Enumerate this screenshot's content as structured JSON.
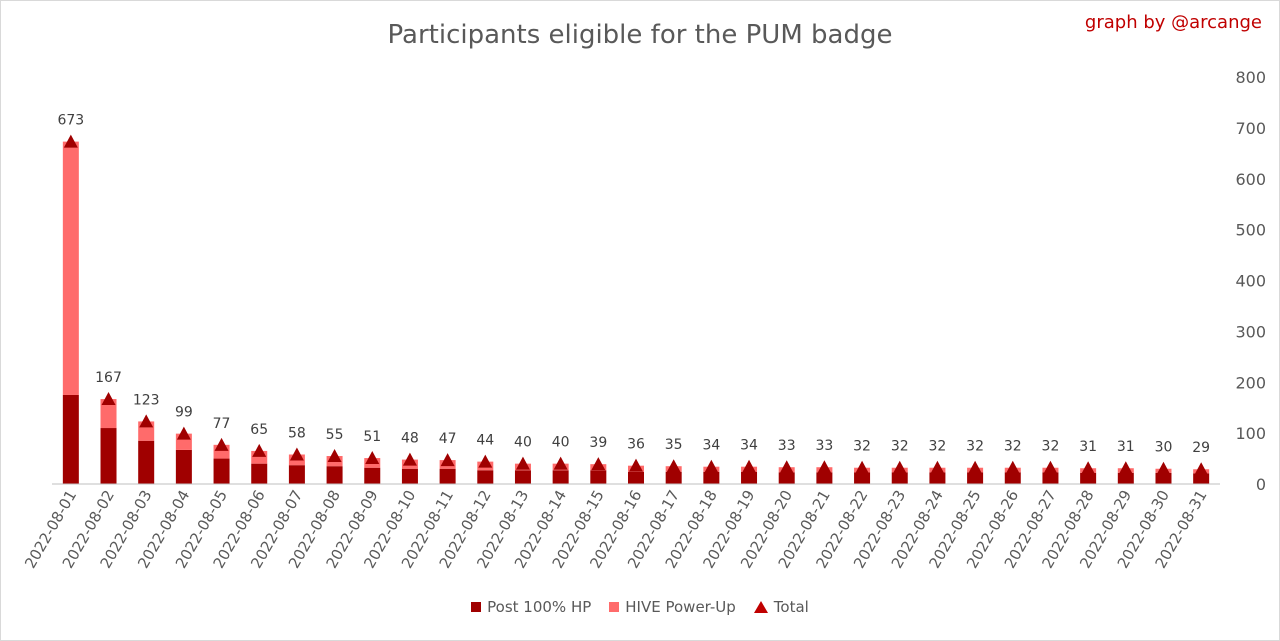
{
  "title": "Participants eligible for the PUM badge",
  "credit": "graph by @arcange",
  "colors": {
    "post": "#a00000",
    "powerup": "#ff6b6b",
    "total": "#a00000",
    "grid": "#d9d9d9"
  },
  "legend": [
    {
      "label": "Post 100% HP",
      "marker": "square",
      "color": "#a00000"
    },
    {
      "label": "HIVE Power-Up",
      "marker": "square",
      "color": "#ff6b6b"
    },
    {
      "label": "Total",
      "marker": "triangle",
      "color": "#c00000"
    }
  ],
  "chart_data": {
    "type": "bar",
    "stacked": true,
    "y_axis_side": "right",
    "ylim": [
      0,
      800
    ],
    "yticks": [
      0,
      100,
      200,
      300,
      400,
      500,
      600,
      700,
      800
    ],
    "grid": true,
    "legend_position": "bottom",
    "categories": [
      "2022-08-01",
      "2022-08-02",
      "2022-08-03",
      "2022-08-04",
      "2022-08-05",
      "2022-08-06",
      "2022-08-07",
      "2022-08-08",
      "2022-08-09",
      "2022-08-10",
      "2022-08-11",
      "2022-08-12",
      "2022-08-13",
      "2022-08-14",
      "2022-08-15",
      "2022-08-16",
      "2022-08-17",
      "2022-08-18",
      "2022-08-19",
      "2022-08-20",
      "2022-08-21",
      "2022-08-22",
      "2022-08-23",
      "2022-08-24",
      "2022-08-25",
      "2022-08-26",
      "2022-08-27",
      "2022-08-28",
      "2022-08-29",
      "2022-08-30",
      "2022-08-31"
    ],
    "series": [
      {
        "name": "Post 100% HP",
        "values": [
          175,
          110,
          85,
          67,
          50,
          40,
          37,
          35,
          32,
          30,
          30,
          27,
          27,
          27,
          27,
          24,
          24,
          24,
          24,
          23,
          23,
          23,
          23,
          23,
          23,
          23,
          23,
          22,
          22,
          22,
          21
        ]
      },
      {
        "name": "HIVE Power-Up",
        "values": [
          498,
          57,
          38,
          32,
          27,
          25,
          21,
          20,
          19,
          18,
          17,
          17,
          13,
          13,
          12,
          12,
          11,
          10,
          10,
          10,
          10,
          9,
          9,
          9,
          9,
          9,
          9,
          9,
          9,
          8,
          8
        ]
      },
      {
        "name": "Total",
        "values": [
          673,
          167,
          123,
          99,
          77,
          65,
          58,
          55,
          51,
          48,
          47,
          44,
          40,
          40,
          39,
          36,
          35,
          34,
          34,
          33,
          33,
          32,
          32,
          32,
          32,
          32,
          32,
          31,
          31,
          30,
          29
        ]
      }
    ]
  }
}
